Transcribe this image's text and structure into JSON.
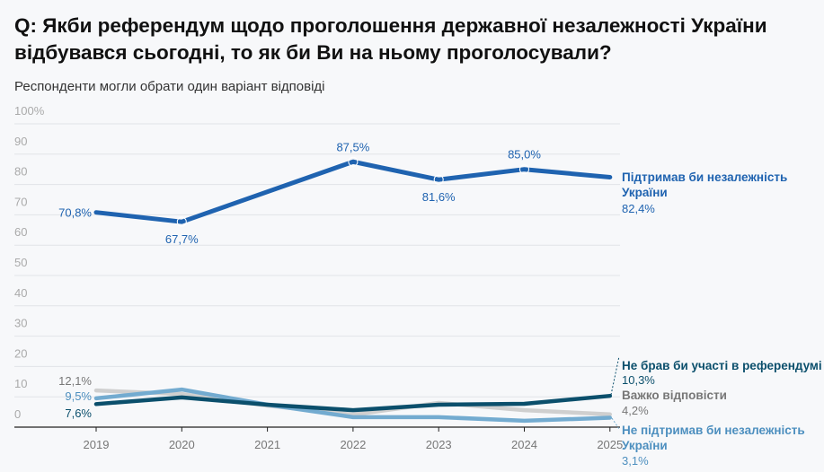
{
  "chart_data": {
    "type": "line",
    "title": "Q: Якби референдум щодо проголошення державної незалежності України відбувався сьогодні, то як би Ви на ньому проголосували?",
    "subtitle": "Респонденти могли обрати один варіант відповіді",
    "x": [
      "2019",
      "2020",
      "2021",
      "2022",
      "2023",
      "2024",
      "2025"
    ],
    "ylim": [
      0,
      100
    ],
    "yticks": [
      "0",
      "10",
      "20",
      "30",
      "40",
      "50",
      "60",
      "70",
      "80",
      "90",
      "100%"
    ],
    "grid": true,
    "series": [
      {
        "name": "Важко відповісти",
        "color": "#cfcfcf",
        "label_color": "#777777",
        "values": [
          12.1,
          10.9,
          7.1,
          4.1,
          8.0,
          5.6,
          4.2
        ],
        "end_label": "4,2%",
        "start_label": "12,1%"
      },
      {
        "name": "Не підтримав би незалежність України",
        "color": "#73abd0",
        "label_color": "#4d8fbf",
        "values": [
          9.5,
          12.4,
          7.4,
          3.3,
          3.3,
          2.1,
          3.1
        ],
        "end_label": "3,1%",
        "start_label": "9,5%"
      },
      {
        "name": "Не брав би участі в референдумі",
        "color": "#0b4f6c",
        "label_color": "#0b4f6c",
        "values": [
          7.6,
          9.8,
          7.4,
          5.6,
          7.4,
          7.7,
          10.3
        ],
        "end_label": "10,3%",
        "start_label": "7,6%"
      },
      {
        "name": "Підтримав би незалежність України",
        "color": "#1f63b0",
        "label_color": "#1f63b0",
        "values": [
          70.8,
          67.7,
          null,
          87.5,
          81.6,
          85.0,
          82.4
        ],
        "end_label": "82,4%",
        "point_labels": [
          "70,8%",
          "67,7%",
          "",
          "87,5%",
          "81,6%",
          "85,0%",
          ""
        ]
      }
    ]
  }
}
